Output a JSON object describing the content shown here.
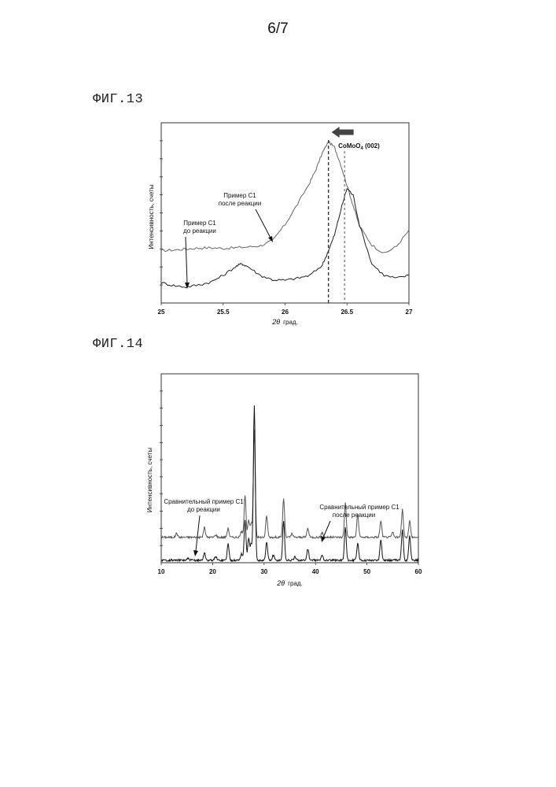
{
  "page": {
    "number": "6/7"
  },
  "figures": {
    "fig13": {
      "label": "ФИГ.13"
    },
    "fig14": {
      "label": "ФИГ.14"
    }
  },
  "chart_data": [
    {
      "type": "line",
      "figure": "ФИГ.13",
      "xlabel_symbol": "2θ",
      "xlabel_unit": "град.",
      "ylabel": "Интенсивность, счеты",
      "xlim": [
        25,
        27
      ],
      "x_ticks": [
        "25",
        "25.5",
        "26",
        "26.5",
        "27"
      ],
      "grid": false,
      "annotations": {
        "reference_label_main": "CoMoO",
        "reference_label_sub": "4",
        "reference_label_suffix": " (002)",
        "reference_line_x": 26.48,
        "shifted_line_x": 26.35,
        "after_label_line1": "Пример С1",
        "after_label_line2": "после реакции",
        "before_label_line1": "Пример С1",
        "before_label_line2": "до реакции"
      },
      "series": [
        {
          "x": [
            25.0,
            25.1,
            25.2,
            25.3,
            25.4,
            25.5,
            25.6,
            25.7,
            25.8,
            25.9,
            26.0,
            26.1,
            26.2,
            26.25,
            26.3,
            26.35,
            26.4,
            26.45,
            26.5,
            26.55,
            26.6,
            26.7,
            26.8,
            26.9,
            27.0
          ],
          "y": [
            1.8,
            1.82,
            1.86,
            1.89,
            1.9,
            1.88,
            1.9,
            1.93,
            1.97,
            2.15,
            2.7,
            3.4,
            4.15,
            4.6,
            5.15,
            5.55,
            5.35,
            4.75,
            4.05,
            3.35,
            2.65,
            2.0,
            1.7,
            1.95,
            2.5
          ]
        },
        {
          "x": [
            25.0,
            25.1,
            25.2,
            25.3,
            25.4,
            25.5,
            25.6,
            25.65,
            25.7,
            25.8,
            25.9,
            26.0,
            26.1,
            26.2,
            26.3,
            26.35,
            26.4,
            26.45,
            26.5,
            26.55,
            26.6,
            26.7,
            26.8,
            26.9,
            27.0
          ],
          "y": [
            0.7,
            0.6,
            0.55,
            0.62,
            0.72,
            0.95,
            1.25,
            1.35,
            1.25,
            0.95,
            0.8,
            0.78,
            0.85,
            0.95,
            1.3,
            1.8,
            2.35,
            3.2,
            3.95,
            3.7,
            2.7,
            1.35,
            0.95,
            0.85,
            0.95
          ]
        }
      ]
    },
    {
      "type": "line",
      "figure": "ФИГ.14",
      "xlabel_symbol": "2θ",
      "xlabel_unit": "град.",
      "ylabel": "Интенсивность, счеты",
      "xlim": [
        10,
        60
      ],
      "x_ticks": [
        "10",
        "20",
        "30",
        "40",
        "50",
        "60"
      ],
      "grid": false,
      "annotations": {
        "before_label_line1": "Сравнительный пример С1",
        "before_label_line2": "до реакции",
        "after_label_line1": "Сравнительный пример С1",
        "after_label_line2": "после реакции"
      },
      "series": [
        {
          "baseline": 1.55,
          "peaks": [
            [
              13.0,
              0.25
            ],
            [
              18.4,
              0.6
            ],
            [
              20.6,
              0.15
            ],
            [
              23.0,
              0.55
            ],
            [
              25.6,
              0.35
            ],
            [
              26.3,
              2.6
            ],
            [
              27.0,
              1.0
            ],
            [
              27.5,
              0.8
            ],
            [
              28.1,
              6.6
            ],
            [
              30.5,
              1.3
            ],
            [
              33.8,
              2.35
            ],
            [
              35.4,
              0.2
            ],
            [
              38.5,
              0.55
            ],
            [
              41.3,
              0.3
            ],
            [
              45.8,
              2.1
            ],
            [
              48.2,
              1.4
            ],
            [
              52.7,
              1.0
            ],
            [
              55.0,
              0.3
            ],
            [
              56.9,
              1.7
            ],
            [
              58.3,
              1.0
            ]
          ]
        },
        {
          "baseline": 0.15,
          "peaks": [
            [
              15.2,
              0.1
            ],
            [
              18.4,
              0.45
            ],
            [
              20.6,
              0.25
            ],
            [
              23.0,
              1.0
            ],
            [
              25.6,
              0.4
            ],
            [
              26.3,
              2.4
            ],
            [
              27.0,
              1.3
            ],
            [
              27.5,
              1.0
            ],
            [
              28.1,
              9.4
            ],
            [
              30.5,
              1.1
            ],
            [
              31.8,
              0.3
            ],
            [
              33.8,
              2.4
            ],
            [
              36.0,
              0.2
            ],
            [
              38.5,
              0.7
            ],
            [
              41.3,
              0.3
            ],
            [
              45.8,
              2.0
            ],
            [
              48.2,
              1.0
            ],
            [
              52.7,
              1.3
            ],
            [
              56.9,
              1.9
            ],
            [
              58.3,
              1.5
            ]
          ]
        }
      ]
    }
  ]
}
